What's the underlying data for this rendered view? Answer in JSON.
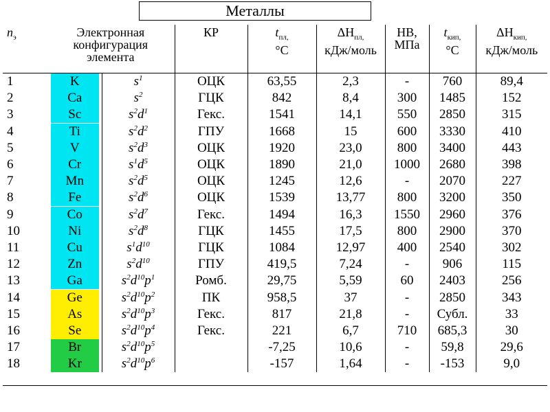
{
  "title": "Металлы",
  "headers": {
    "n": "n",
    "n_sub": "э",
    "config": "Электронная конфигурация элемента",
    "kr": "КР",
    "tmelt_main": "t",
    "tmelt_sub": "пл,",
    "tmelt_unit": "°С",
    "hmelt_main": "ΔH",
    "hmelt_sub": "пл,",
    "hmelt_unit": "кДж/моль",
    "hb": "HB,",
    "hb_unit": "МПа",
    "tboil_main": "t",
    "tboil_sub": "кип,",
    "tboil_unit": "°С",
    "hboil_main": "ΔH",
    "hboil_sub": "кип,",
    "hboil_unit": "кДж/моль"
  },
  "colors": {
    "cyan": "#00e5f2",
    "yellow": "#ffee00",
    "green": "#22cc44"
  },
  "rows": [
    {
      "n": "1",
      "el": "K",
      "color": "cyan",
      "conf": [
        [
          "s",
          "1"
        ]
      ],
      "kr": "ОЦК",
      "tm": "63,55",
      "hm": "2,3",
      "hb": "-",
      "tb": "760",
      "hb2": "89,4"
    },
    {
      "n": "2",
      "el": "Ca",
      "color": "cyan",
      "conf": [
        [
          "s",
          "2"
        ]
      ],
      "kr": "ГЦК",
      "tm": "842",
      "hm": "8,4",
      "hb": "300",
      "tb": "1485",
      "hb2": "152"
    },
    {
      "n": "3",
      "el": "Sc",
      "color": "cyan",
      "conf": [
        [
          "s",
          "2"
        ],
        [
          "d",
          "1"
        ]
      ],
      "kr": "Гекс.",
      "tm": "1541",
      "hm": "14,1",
      "hb": "550",
      "tb": "2850",
      "hb2": "315"
    },
    {
      "n": "4",
      "el": "Ti",
      "color": "cyan",
      "conf": [
        [
          "s",
          "2"
        ],
        [
          "d",
          "2"
        ]
      ],
      "kr": "ГПУ",
      "tm": "1668",
      "hm": "15",
      "hb": "600",
      "tb": "3330",
      "hb2": "410"
    },
    {
      "n": "5",
      "el": "V",
      "color": "cyan",
      "conf": [
        [
          "s",
          "2"
        ],
        [
          "d",
          "3"
        ]
      ],
      "kr": "ОЦК",
      "tm": "1920",
      "hm": "23,0",
      "hb": "800",
      "tb": "3400",
      "hb2": "443"
    },
    {
      "n": "6",
      "el": "Cr",
      "color": "cyan",
      "conf": [
        [
          "s",
          "1"
        ],
        [
          "d",
          "5"
        ]
      ],
      "kr": "ОЦК",
      "tm": "1890",
      "hm": "21,0",
      "hb": "1000",
      "tb": "2680",
      "hb2": "398"
    },
    {
      "n": "7",
      "el": "Mn",
      "color": "cyan",
      "conf": [
        [
          "s",
          "2"
        ],
        [
          "d",
          "5"
        ]
      ],
      "kr": "ОЦК",
      "tm": "1245",
      "hm": "12,6",
      "hb": "-",
      "tb": "2070",
      "hb2": "227"
    },
    {
      "n": "8",
      "el": "Fe",
      "color": "cyan",
      "conf": [
        [
          "s",
          "2"
        ],
        [
          "d",
          "6"
        ]
      ],
      "kr": "ОЦК",
      "tm": "1539",
      "hm": "13,77",
      "hb": "800",
      "tb": "3200",
      "hb2": "350"
    },
    {
      "n": "9",
      "el": "Co",
      "color": "cyan",
      "conf": [
        [
          "s",
          "2"
        ],
        [
          "d",
          "7"
        ]
      ],
      "kr": "Гекс.",
      "tm": "1494",
      "hm": "16,3",
      "hb": "1550",
      "tb": "2960",
      "hb2": "376"
    },
    {
      "n": "10",
      "el": "Ni",
      "color": "cyan",
      "conf": [
        [
          "s",
          "2"
        ],
        [
          "d",
          "8"
        ]
      ],
      "kr": "ГЦК",
      "tm": "1455",
      "hm": "17,5",
      "hb": "800",
      "tb": "2900",
      "hb2": "370"
    },
    {
      "n": "11",
      "el": "Cu",
      "color": "cyan",
      "conf": [
        [
          "s",
          "1"
        ],
        [
          "d",
          "10"
        ]
      ],
      "kr": "ГЦК",
      "tm": "1084",
      "hm": "12,97",
      "hb": "400",
      "tb": "2540",
      "hb2": "302"
    },
    {
      "n": "12",
      "el": "Zn",
      "color": "cyan",
      "conf": [
        [
          "s",
          "2"
        ],
        [
          "d",
          "10"
        ]
      ],
      "kr": "ГПУ",
      "tm": "419,5",
      "hm": "7,24",
      "hb": "-",
      "tb": "906",
      "hb2": "115"
    },
    {
      "n": "13",
      "el": "Ga",
      "color": "cyan",
      "conf": [
        [
          "s",
          "2"
        ],
        [
          "d",
          "10"
        ],
        [
          "p",
          "1"
        ]
      ],
      "kr": "Ромб.",
      "tm": "29,75",
      "hm": "5,59",
      "hb": "60",
      "tb": "2403",
      "hb2": "256"
    },
    {
      "n": "14",
      "el": "Ge",
      "color": "yellow",
      "conf": [
        [
          "s",
          "2"
        ],
        [
          "d",
          "10"
        ],
        [
          "p",
          "2"
        ]
      ],
      "kr": "ПК",
      "tm": "958,5",
      "hm": "37",
      "hb": "-",
      "tb": "2850",
      "hb2": "343"
    },
    {
      "n": "15",
      "el": "As",
      "color": "yellow",
      "conf": [
        [
          "s",
          "2"
        ],
        [
          "d",
          "10"
        ],
        [
          "p",
          "3"
        ]
      ],
      "kr": "Гекс.",
      "tm": "817",
      "hm": "21,8",
      "hb": "-",
      "tb": "Субл.",
      "hb2": "33"
    },
    {
      "n": "16",
      "el": "Se",
      "color": "yellow",
      "conf": [
        [
          "s",
          "2"
        ],
        [
          "d",
          "10"
        ],
        [
          "p",
          "4"
        ]
      ],
      "kr": "Гекс.",
      "tm": "221",
      "hm": "6,7",
      "hb": "710",
      "tb": "685,3",
      "hb2": "30"
    },
    {
      "n": "17",
      "el": "Br",
      "color": "green",
      "conf": [
        [
          "s",
          "2"
        ],
        [
          "d",
          "10"
        ],
        [
          "p",
          "5"
        ]
      ],
      "kr": "",
      "tm": "-7,25",
      "hm": "10,6",
      "hb": "-",
      "tb": "59,8",
      "hb2": "29,6"
    },
    {
      "n": "18",
      "el": "Kr",
      "color": "green",
      "conf": [
        [
          "s",
          "2"
        ],
        [
          "d",
          "10"
        ],
        [
          "p",
          "6"
        ]
      ],
      "kr": "",
      "tm": "-157",
      "hm": "1,64",
      "hb": "-",
      "tb": "-153",
      "hb2": "9,0"
    }
  ]
}
